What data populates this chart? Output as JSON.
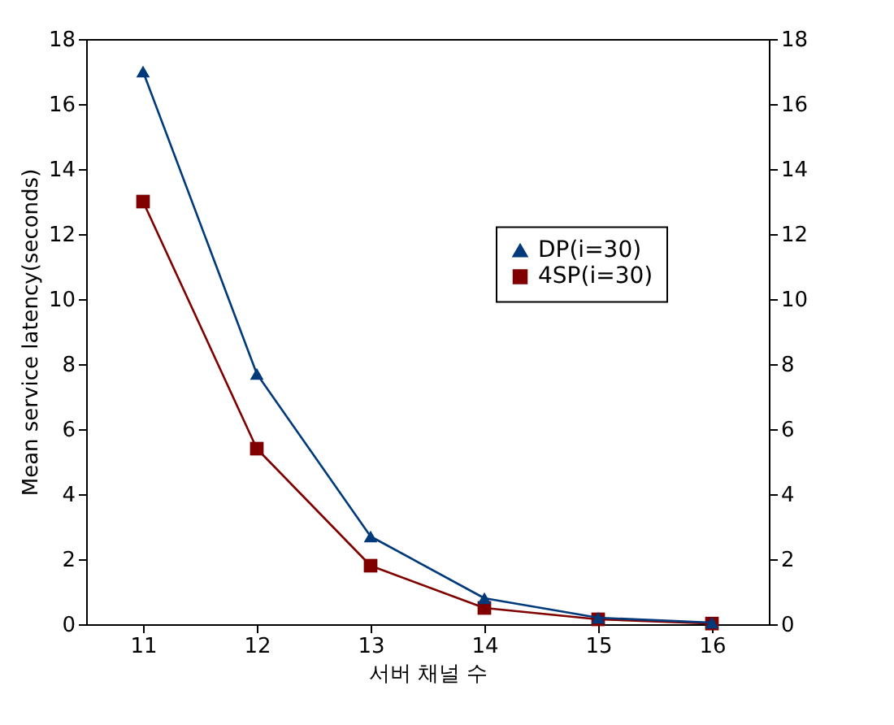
{
  "chart_data": {
    "type": "line",
    "xlabel": "서버 채널 수",
    "ylabel": "Mean service latency(seconds)",
    "categories": [
      "11",
      "12",
      "13",
      "14",
      "15",
      "16"
    ],
    "series": [
      {
        "name": "DP(i=30)",
        "color": "#003a7a",
        "marker": "triangle",
        "values": [
          17,
          7.7,
          2.7,
          0.8,
          0.2,
          0.05
        ]
      },
      {
        "name": "4SP(i=30)",
        "color": "#800000",
        "marker": "square",
        "values": [
          13,
          5.4,
          1.8,
          0.5,
          0.15,
          0.02
        ]
      }
    ],
    "ylim": [
      0,
      18
    ],
    "yticks": [
      0,
      2,
      4,
      6,
      8,
      10,
      12,
      14,
      16,
      18
    ],
    "y2lim": [
      0,
      18
    ],
    "y2ticks": [
      0,
      2,
      4,
      6,
      8,
      10,
      12,
      14,
      16,
      18
    ],
    "grid": false,
    "legend": "right"
  }
}
